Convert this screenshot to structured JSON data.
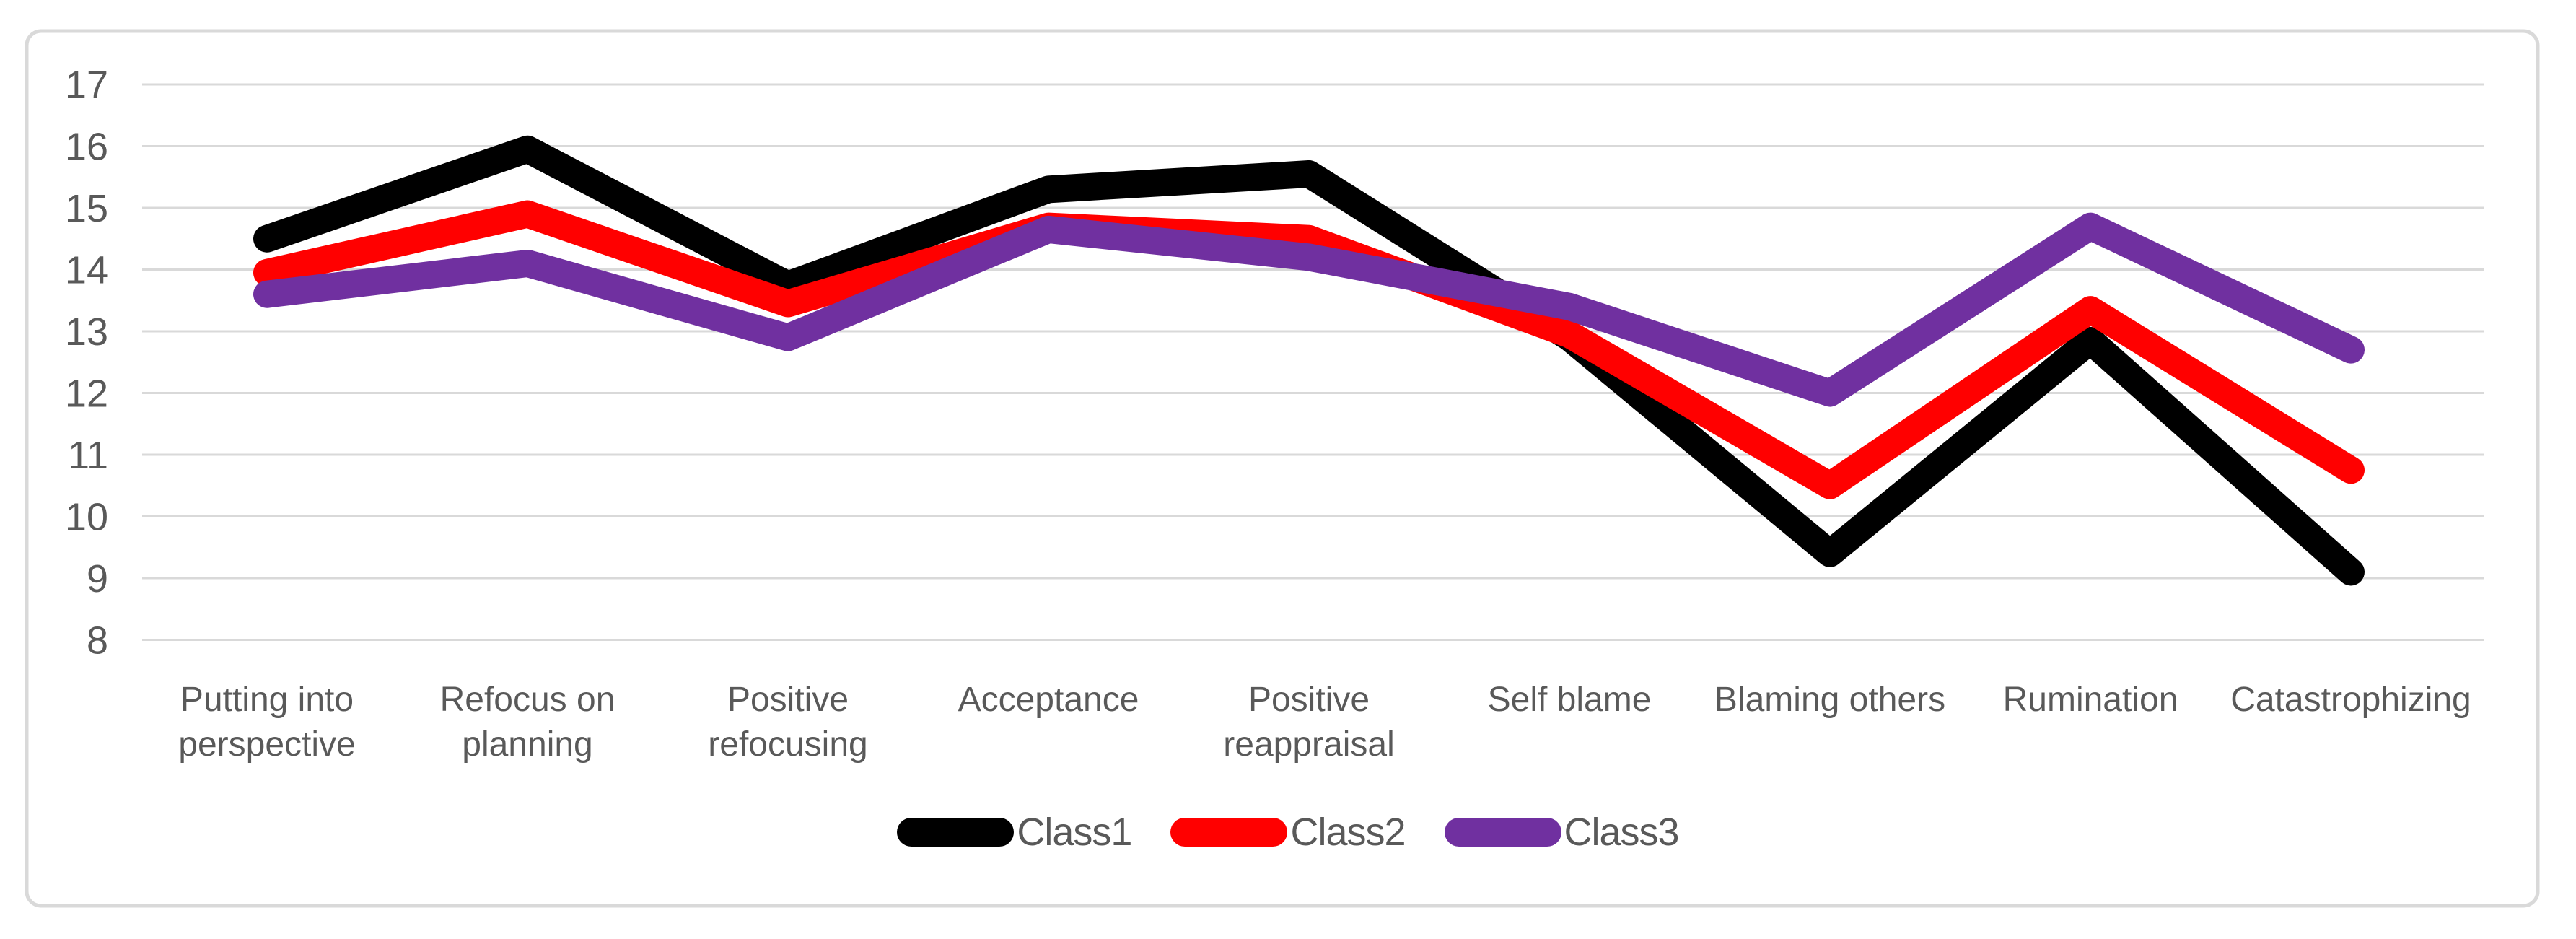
{
  "chart_data": {
    "type": "line",
    "title": "",
    "xlabel": "",
    "ylabel": "",
    "categories": [
      "Putting into perspective",
      "Refocus on planning",
      "Positive refocusing",
      "Acceptance",
      "Positive reappraisal",
      "Self blame",
      "Blaming others",
      "Rumination",
      "Catastrophizing"
    ],
    "category_label_lines": [
      [
        "Putting into",
        "perspective"
      ],
      [
        "Refocus on",
        "planning"
      ],
      [
        "Positive",
        "refocusing"
      ],
      [
        "Acceptance"
      ],
      [
        "Positive",
        "reappraisal"
      ],
      [
        "Self blame"
      ],
      [
        "Blaming others"
      ],
      [
        "Rumination"
      ],
      [
        "Catastrophizing"
      ]
    ],
    "series": [
      {
        "name": "Class1",
        "color": "#000000",
        "values": [
          14.5,
          15.95,
          13.75,
          15.3,
          15.55,
          12.9,
          9.4,
          12.85,
          9.1
        ]
      },
      {
        "name": "Class2",
        "color": "#FF0000",
        "values": [
          13.95,
          14.9,
          13.45,
          14.7,
          14.5,
          12.95,
          10.5,
          13.35,
          10.75
        ]
      },
      {
        "name": "Class3",
        "color": "#7030A0",
        "values": [
          13.6,
          14.1,
          12.9,
          14.65,
          14.2,
          13.4,
          12.0,
          14.7,
          12.7
        ]
      }
    ],
    "y_axis": {
      "min": 8,
      "max": 17,
      "step": 1,
      "tick_labels": [
        "8",
        "9",
        "10",
        "11",
        "12",
        "13",
        "14",
        "15",
        "16",
        "17"
      ]
    },
    "grid": true,
    "legend_position": "bottom",
    "colors": {
      "gridline": "#D9D9D9",
      "chart_border": "#D9D9D9",
      "axis_text": "#595959",
      "background": "#FFFFFF"
    }
  }
}
